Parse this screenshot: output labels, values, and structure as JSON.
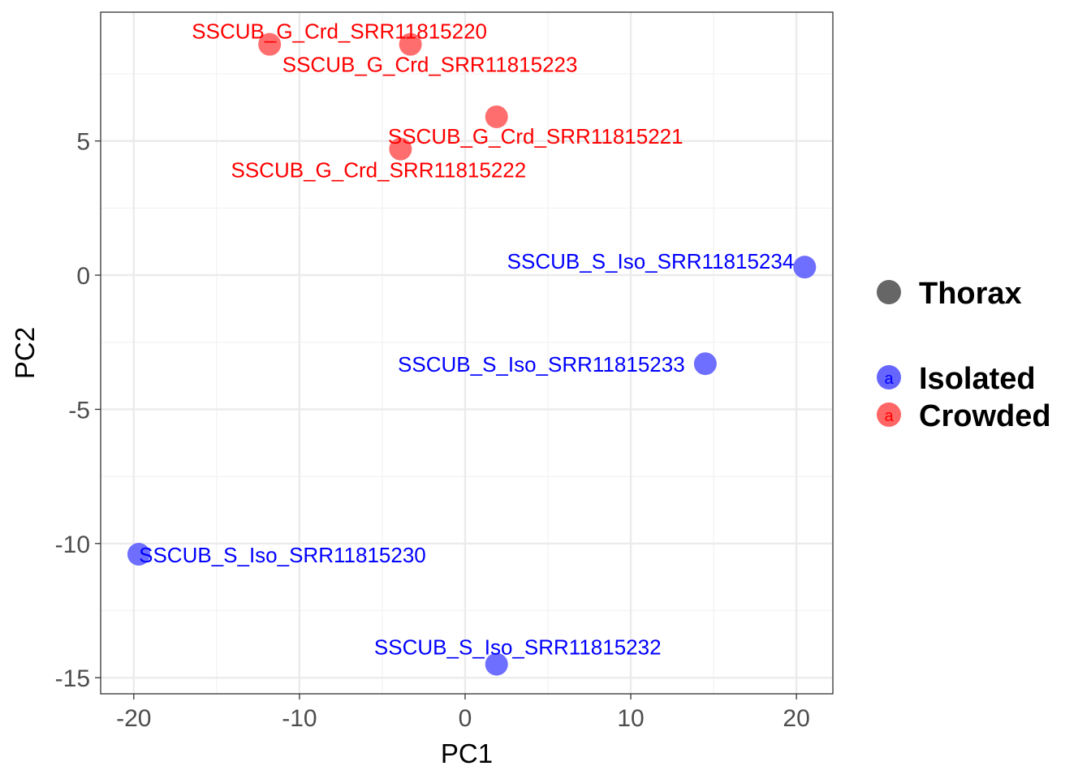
{
  "chart_data": {
    "type": "scatter",
    "title": "",
    "xlabel": "PC1",
    "ylabel": "PC2",
    "xlim": [
      -22,
      22.2
    ],
    "ylim": [
      -15.6,
      9.8
    ],
    "x_ticks": [
      -20,
      -10,
      0,
      10,
      20
    ],
    "y_ticks": [
      5,
      0,
      -5,
      -10,
      -15
    ],
    "x_tick_labels": [
      "-20",
      "-10",
      "0",
      "10",
      "20"
    ],
    "y_tick_labels": [
      "5",
      "0",
      "-5",
      "-10",
      "-15"
    ],
    "grid": true,
    "legend_position": "right",
    "series": [
      {
        "name": "Isolated",
        "color": "#6666ff",
        "label_color": "#0000ff",
        "points": [
          {
            "x": 20.5,
            "y": 0.3,
            "label": "SSCUB_S_Iso_SRR11815234"
          },
          {
            "x": 14.5,
            "y": -3.3,
            "label": "SSCUB_S_Iso_SRR11815233"
          },
          {
            "x": -19.7,
            "y": -10.4,
            "label": "SSCUB_S_Iso_SRR11815230"
          },
          {
            "x": 1.9,
            "y": -14.5,
            "label": "SSCUB_S_Iso_SRR11815232"
          }
        ]
      },
      {
        "name": "Crowded",
        "color": "#ff6666",
        "label_color": "#ff0000",
        "points": [
          {
            "x": -11.8,
            "y": 8.6,
            "label": "SSCUB_G_Crd_SRR11815220"
          },
          {
            "x": -3.3,
            "y": 8.6,
            "label": "SSCUB_G_Crd_SRR11815223"
          },
          {
            "x": 1.9,
            "y": 5.9,
            "label": "SSCUB_G_Crd_SRR11815221"
          },
          {
            "x": -3.9,
            "y": 4.7,
            "label": "SSCUB_G_Crd_SRR11815222"
          }
        ]
      }
    ],
    "legend": {
      "shape_title": "Thorax",
      "shape_color": "#666666",
      "key_glyph": "a",
      "entries": [
        "Isolated",
        "Crowded"
      ]
    }
  }
}
